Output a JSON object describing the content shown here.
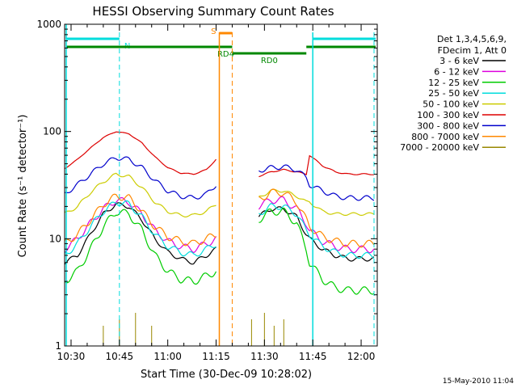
{
  "chart_data": {
    "type": "line",
    "title": "HESSI Observing Summary Count Rates",
    "xlabel": "Start Time (30-Dec-09 10:28:02)",
    "ylabel": "Count Rate (s⁻¹ detector⁻¹)",
    "x_axis": {
      "unit": "time of day",
      "range": [
        "10:28",
        "12:05"
      ],
      "ticks": [
        "10:30",
        "10:45",
        "11:00",
        "11:15",
        "11:30",
        "11:45",
        "12:00"
      ]
    },
    "y_axis": {
      "scale": "log",
      "range": [
        1,
        1000
      ],
      "ticks": [
        "1",
        "10",
        "100",
        "1000"
      ]
    },
    "grid": false,
    "legend_position": "right",
    "legend_header": [
      "Det 1,3,4,5,6,9,",
      "FDecim 1, Att 0"
    ],
    "x_sample": [
      "10:28",
      "10:32",
      "10:36",
      "10:40",
      "10:44",
      "10:48",
      "10:52",
      "10:56",
      "11:00",
      "11:04",
      "11:08",
      "11:12",
      "11:15",
      "11:19.5",
      "11:28",
      "11:32",
      "11:36",
      "11:40",
      "11:43",
      "11:44",
      "11:48",
      "11:52",
      "11:56",
      "12:00",
      "12:04"
    ],
    "series": [
      {
        "name": "3 - 6 keV",
        "color": "#000000",
        "values": [
          6,
          7,
          11,
          17,
          21,
          20,
          15,
          10,
          7.5,
          6.5,
          6,
          7,
          8,
          null,
          16,
          19,
          19,
          16,
          11,
          10,
          8,
          7,
          6.5,
          6.5,
          6.5
        ]
      },
      {
        "name": "6 - 12 keV",
        "color": "#dd00dd",
        "values": [
          8,
          10,
          14,
          19,
          23,
          22,
          17,
          12,
          9.5,
          8.5,
          8,
          9,
          10,
          null,
          20,
          23,
          23,
          19,
          14,
          12,
          9.5,
          8.5,
          8,
          8,
          8
        ]
      },
      {
        "name": "12 - 25 keV",
        "color": "#00cc00",
        "values": [
          4,
          5,
          8,
          13,
          18,
          17,
          12,
          7,
          5,
          4.2,
          4,
          4.5,
          5,
          null,
          15,
          18,
          18,
          14,
          8,
          6,
          4.2,
          3.5,
          3.3,
          3.3,
          3.3
        ]
      },
      {
        "name": "25 - 50 keV",
        "color": "#00dddd",
        "values": [
          7,
          9,
          13,
          18,
          22,
          21,
          16,
          11,
          8.5,
          7.5,
          7,
          8,
          9,
          null,
          17,
          20,
          20,
          17,
          12,
          11,
          8.5,
          7.5,
          7,
          7,
          7
        ]
      },
      {
        "name": "50 - 100 keV",
        "color": "#cccc00",
        "values": [
          17,
          20,
          27,
          34,
          40,
          38,
          30,
          22,
          18,
          16.5,
          16.5,
          18,
          21,
          null,
          24,
          28,
          28,
          25,
          22,
          22,
          18,
          17,
          17,
          17,
          17
        ]
      },
      {
        "name": "100 - 300 keV",
        "color": "#dd0000",
        "values": [
          45,
          55,
          70,
          88,
          100,
          95,
          78,
          58,
          46,
          41,
          40,
          44,
          55,
          null,
          38,
          42,
          44,
          42,
          40,
          60,
          48,
          42,
          40,
          40,
          40
        ]
      },
      {
        "name": "300 - 800 keV",
        "color": "#0000cc",
        "values": [
          26,
          32,
          40,
          50,
          57,
          55,
          46,
          35,
          28,
          25,
          24,
          26,
          32,
          null,
          43,
          46,
          47,
          44,
          37,
          32,
          28,
          25,
          24,
          24,
          24
        ]
      },
      {
        "name": "800 - 7000 keV",
        "color": "#ff8800",
        "values": [
          9,
          11,
          15,
          21,
          25,
          24,
          18,
          13,
          10.5,
          9.5,
          9,
          10,
          11,
          null,
          23,
          27,
          27,
          22,
          15,
          13,
          10.5,
          9.5,
          9,
          9,
          9
        ]
      },
      {
        "name": "7000 - 20000 keV",
        "color": "#998800",
        "values": [
          null,
          null,
          null,
          null,
          null,
          null,
          null,
          null,
          null,
          null,
          null,
          null,
          null,
          null,
          null,
          null,
          null,
          null,
          null,
          null,
          null,
          null,
          null,
          null,
          null
        ]
      }
    ],
    "annotations": [
      {
        "text": "N",
        "type": "night",
        "color": "#00dddd",
        "from": "10:28",
        "to": "10:45",
        "level": "upper"
      },
      {
        "text": "",
        "type": "night",
        "color": "#00dddd",
        "from": "11:45",
        "to": "12:05",
        "level": "upper"
      },
      {
        "text": "S",
        "type": "SAA",
        "color": "#ff8800",
        "from": "11:16",
        "to": "11:20",
        "level": "top"
      },
      {
        "text": "",
        "type": "attenuator",
        "color": "#008800",
        "from": "10:28",
        "to": "11:16",
        "level": "middle"
      },
      {
        "text": "RD4",
        "type": "decimation",
        "color": "#008800",
        "from": "11:16",
        "to": "11:20",
        "level": "middle"
      },
      {
        "text": "RD0",
        "type": "decimation",
        "color": "#008800",
        "from": "11:20",
        "to": "11:43",
        "level": "lower"
      },
      {
        "text": "",
        "type": "attenuator",
        "color": "#008800",
        "from": "11:43",
        "to": "12:05",
        "level": "middle"
      }
    ]
  },
  "footer": {
    "date_stamp": "15-May-2010 11:04"
  }
}
